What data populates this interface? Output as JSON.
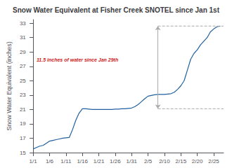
{
  "chart_data": {
    "type": "line",
    "title": "Snow Water Equivalent at Fisher Creek SNOTEL since Jan 1st",
    "ylabel": "Snow Water Equivalent (inches)",
    "x": [
      0,
      1,
      2,
      3,
      4,
      5,
      6,
      7,
      8,
      9,
      10,
      11,
      12,
      13,
      14,
      15,
      16,
      17,
      18,
      19,
      20,
      21,
      22,
      23,
      24,
      25,
      26,
      27,
      28,
      29,
      30,
      31,
      32,
      33,
      34,
      35,
      36,
      37,
      38,
      39,
      40,
      41,
      42,
      43,
      44,
      45,
      46,
      47,
      48,
      49,
      50,
      51,
      52,
      53,
      54,
      55,
      56,
      57
    ],
    "values": [
      15.5,
      15.7,
      15.9,
      16.0,
      16.3,
      16.6,
      16.7,
      16.8,
      16.9,
      17.0,
      17.05,
      17.1,
      18.2,
      19.5,
      20.5,
      21.1,
      21.1,
      21.05,
      21.0,
      21.0,
      21.0,
      21.0,
      21.0,
      21.0,
      21.0,
      21.05,
      21.05,
      21.1,
      21.1,
      21.15,
      21.2,
      21.4,
      21.7,
      22.1,
      22.5,
      22.85,
      22.95,
      23.05,
      23.1,
      23.1,
      23.1,
      23.15,
      23.2,
      23.4,
      23.8,
      24.3,
      25.0,
      26.5,
      28.0,
      28.8,
      29.3,
      30.0,
      30.5,
      31.0,
      31.8,
      32.2,
      32.5,
      32.6
    ],
    "color": "#2060a0",
    "xlim": [
      -0.5,
      58
    ],
    "xticks": [
      {
        "value": 0,
        "label": "1/1"
      },
      {
        "value": 5,
        "label": "1/6"
      },
      {
        "value": 10,
        "label": "1/11"
      },
      {
        "value": 15,
        "label": "1/16"
      },
      {
        "value": 20,
        "label": "1/21"
      },
      {
        "value": 25,
        "label": "1/26"
      },
      {
        "value": 30,
        "label": "1/31"
      },
      {
        "value": 35,
        "label": "2/5"
      },
      {
        "value": 40,
        "label": "2/10"
      },
      {
        "value": 45,
        "label": "2/15"
      },
      {
        "value": 50,
        "label": "2/20"
      },
      {
        "value": 55,
        "label": "2/25"
      }
    ],
    "ylim": [
      15,
      33.5
    ],
    "yticks": [
      15,
      17,
      19,
      21,
      23,
      25,
      27,
      29,
      31,
      33
    ],
    "grid": false,
    "annotation": {
      "text": "11.5 inches of water since Jan 29th",
      "color": "#cc2222"
    },
    "range_arrow": {
      "x": 38,
      "from": 21.1,
      "to": 32.6,
      "color": "#aaaaaa",
      "dash_color": "#aaaaaa"
    }
  }
}
